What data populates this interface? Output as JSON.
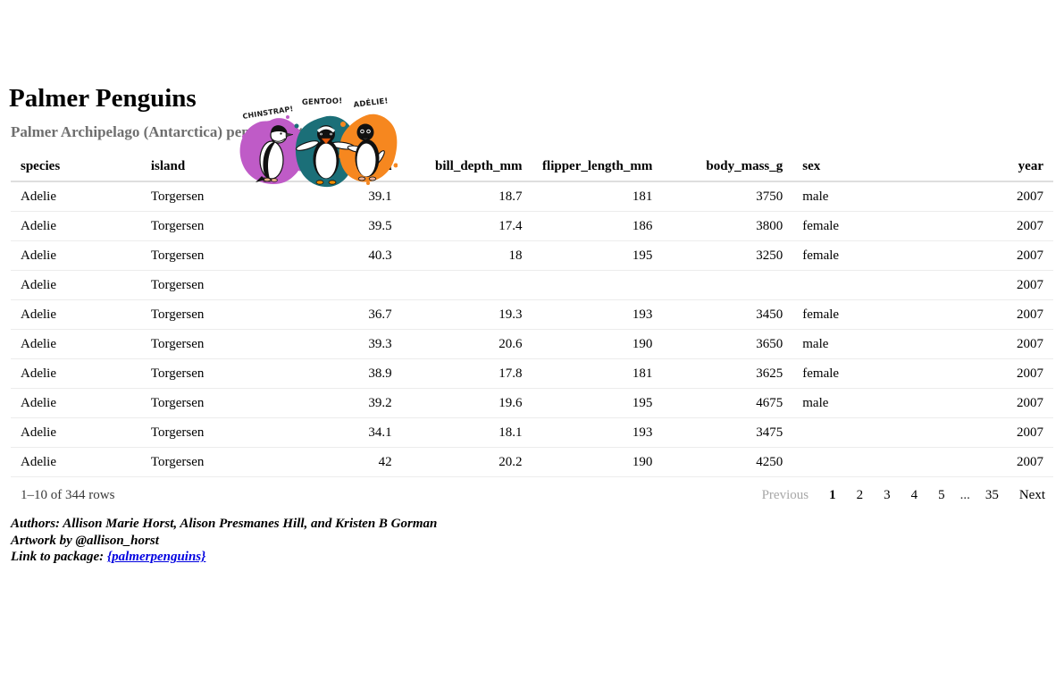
{
  "artwork": {
    "labels": {
      "chinstrap": "CHINSTRAP!",
      "gentoo": "GENTOO!",
      "adelie": "ADÉLIE!"
    },
    "colors": {
      "chinstrap_blob": "#bf5bc7",
      "gentoo_blob": "#1b6f78",
      "adelie_blob": "#f6871f",
      "beak_orange": "#e8590c",
      "feet_orange": "#f08c00"
    }
  },
  "header": {
    "title": "Palmer Penguins",
    "subtitle": "Palmer Archipelago (Antarctica) penguin data"
  },
  "table": {
    "columns": [
      {
        "key": "species",
        "label": "species",
        "align": "left"
      },
      {
        "key": "island",
        "label": "island",
        "align": "left"
      },
      {
        "key": "bill_length_mm",
        "label": "bill_length_mm",
        "align": "right"
      },
      {
        "key": "bill_depth_mm",
        "label": "bill_depth_mm",
        "align": "right"
      },
      {
        "key": "flipper_length_mm",
        "label": "flipper_length_mm",
        "align": "right"
      },
      {
        "key": "body_mass_g",
        "label": "body_mass_g",
        "align": "right"
      },
      {
        "key": "sex",
        "label": "sex",
        "align": "left"
      },
      {
        "key": "year",
        "label": "year",
        "align": "right"
      }
    ],
    "rows": [
      [
        "Adelie",
        "Torgersen",
        "39.1",
        "18.7",
        "181",
        "3750",
        "male",
        "2007"
      ],
      [
        "Adelie",
        "Torgersen",
        "39.5",
        "17.4",
        "186",
        "3800",
        "female",
        "2007"
      ],
      [
        "Adelie",
        "Torgersen",
        "40.3",
        "18",
        "195",
        "3250",
        "female",
        "2007"
      ],
      [
        "Adelie",
        "Torgersen",
        "",
        "",
        "",
        "",
        "",
        "2007"
      ],
      [
        "Adelie",
        "Torgersen",
        "36.7",
        "19.3",
        "193",
        "3450",
        "female",
        "2007"
      ],
      [
        "Adelie",
        "Torgersen",
        "39.3",
        "20.6",
        "190",
        "3650",
        "male",
        "2007"
      ],
      [
        "Adelie",
        "Torgersen",
        "38.9",
        "17.8",
        "181",
        "3625",
        "female",
        "2007"
      ],
      [
        "Adelie",
        "Torgersen",
        "39.2",
        "19.6",
        "195",
        "4675",
        "male",
        "2007"
      ],
      [
        "Adelie",
        "Torgersen",
        "34.1",
        "18.1",
        "193",
        "3475",
        "",
        "2007"
      ],
      [
        "Adelie",
        "Torgersen",
        "42",
        "20.2",
        "190",
        "4250",
        "",
        "2007"
      ]
    ]
  },
  "pagination": {
    "info": "1–10 of 344 rows",
    "previous_label": "Previous",
    "next_label": "Next",
    "pages": [
      "1",
      "2",
      "3",
      "4",
      "5",
      "...",
      "35"
    ],
    "current_page": "1"
  },
  "footer": {
    "authors": "Authors: Allison Marie Horst, Alison Presmanes Hill, and Kristen B Gorman",
    "artwork_credit": "Artwork by @allison_horst",
    "link_label": "Link to package: ",
    "link_text": "{palmerpenguins}"
  }
}
